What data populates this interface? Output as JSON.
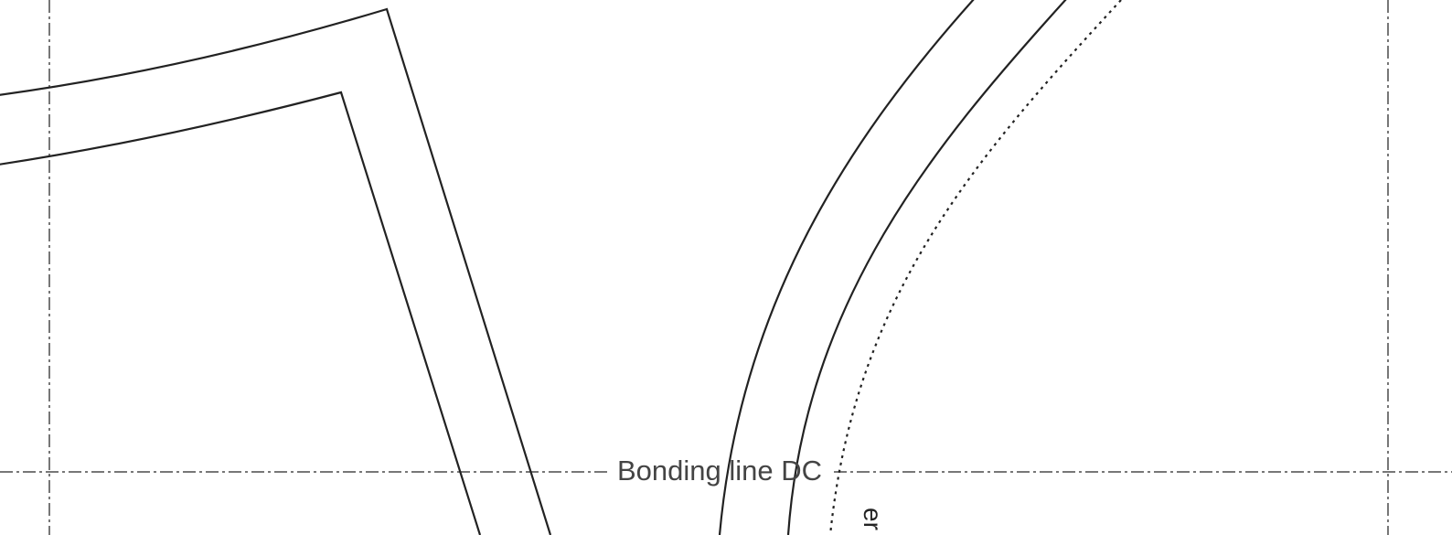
{
  "diagram": {
    "labels": {
      "bonding_line": "Bonding line DC",
      "edge_fragment": "er"
    }
  }
}
